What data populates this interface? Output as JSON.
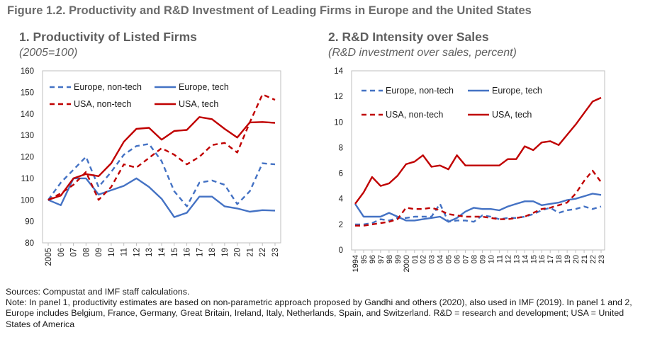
{
  "figure_title": "Figure 1.2. Productivity and R&D Investment of Leading Firms in Europe and the United States",
  "panel1": {
    "title": "1. Productivity of Listed Firms",
    "subtitle": "(2005=100)"
  },
  "panel2": {
    "title": "2. R&D Intensity over Sales",
    "subtitle": "(R&D investment over sales, percent)"
  },
  "notes": {
    "sources": "Sources: Compustat and IMF staff calculations.",
    "note": "Note: In panel 1, productivity estimates are based on non-parametric approach proposed by Gandhi and others (2020), also used in IMF (2019). In panel 1 and 2, Europe includes Belgium, France, Germany, Great Britain, Ireland, Italy, Netherlands, Spain, and Switzerland. R&D = research and development; USA = United States of America"
  },
  "colors": {
    "europe": "#4472C4",
    "usa": "#C00000",
    "title_gray": "#6b6b6b"
  },
  "chart_data": [
    {
      "type": "line",
      "title": "1. Productivity of Listed Firms",
      "subtitle": "(2005=100)",
      "x": [
        "2005",
        "06",
        "07",
        "08",
        "09",
        "10",
        "11",
        "12",
        "13",
        "14",
        "15",
        "16",
        "17",
        "18",
        "19",
        "20",
        "21",
        "22",
        "23"
      ],
      "ylim": [
        80,
        160
      ],
      "yticks": [
        80,
        90,
        100,
        110,
        120,
        130,
        140,
        150,
        160
      ],
      "grid": false,
      "legend_position": "top-left",
      "series": [
        {
          "name": "Europe, non-tech",
          "color": "#4472C4",
          "dash": true,
          "values": [
            100,
            108,
            114,
            120,
            106,
            113,
            121,
            125,
            126,
            118,
            104,
            97,
            108,
            109,
            107,
            98,
            104,
            117,
            116.5
          ]
        },
        {
          "name": "Europe, tech",
          "color": "#4472C4",
          "dash": false,
          "values": [
            100,
            97.5,
            110,
            110,
            102.5,
            104.5,
            106.5,
            110,
            106,
            100.5,
            92,
            94,
            101.5,
            101.5,
            97,
            96,
            94.5,
            95.2,
            95
          ]
        },
        {
          "name": "USA, non-tech",
          "color": "#C00000",
          "dash": true,
          "values": [
            100,
            103,
            107,
            113,
            100,
            106,
            116.5,
            115,
            119.5,
            124,
            121,
            116.5,
            120,
            125.5,
            126.5,
            122,
            136,
            149,
            146.5
          ]
        },
        {
          "name": "USA, tech",
          "color": "#C00000",
          "dash": false,
          "values": [
            100,
            102,
            110,
            112,
            111,
            117,
            127,
            133,
            133.5,
            128,
            132,
            132.5,
            138.5,
            137.5,
            133,
            129,
            136,
            136.2,
            135.8
          ]
        }
      ]
    },
    {
      "type": "line",
      "title": "2. R&D Intensity over Sales",
      "subtitle": "(R&D investment over sales, percent)",
      "x": [
        "1994",
        "95",
        "96",
        "97",
        "98",
        "99",
        "2000",
        "01",
        "02",
        "03",
        "04",
        "05",
        "06",
        "07",
        "08",
        "09",
        "10",
        "11",
        "12",
        "13",
        "14",
        "15",
        "16",
        "17",
        "18",
        "19",
        "20",
        "21",
        "22",
        "23"
      ],
      "ylim": [
        0,
        14
      ],
      "yticks": [
        0,
        2,
        4,
        6,
        8,
        10,
        12,
        14
      ],
      "grid": false,
      "legend_position": "top-left",
      "series": [
        {
          "name": "Europe, non-tech",
          "color": "#4472C4",
          "dash": true,
          "values": [
            2.0,
            2.0,
            2.1,
            2.4,
            2.3,
            2.5,
            2.5,
            2.6,
            2.6,
            2.6,
            3.6,
            2.2,
            2.3,
            2.3,
            2.2,
            2.7,
            2.6,
            2.4,
            2.5,
            2.5,
            2.6,
            2.8,
            3.1,
            3.3,
            2.9,
            3.1,
            3.2,
            3.4,
            3.2,
            3.4
          ]
        },
        {
          "name": "Europe, tech",
          "color": "#4472C4",
          "dash": false,
          "values": [
            3.6,
            2.6,
            2.6,
            2.6,
            2.9,
            2.6,
            2.3,
            2.3,
            2.4,
            2.5,
            2.6,
            2.2,
            2.5,
            3.0,
            3.3,
            3.2,
            3.2,
            3.1,
            3.4,
            3.6,
            3.8,
            3.8,
            3.5,
            3.6,
            3.7,
            3.9,
            4.0,
            4.2,
            4.4,
            4.3
          ]
        },
        {
          "name": "USA, non-tech",
          "color": "#C00000",
          "dash": true,
          "values": [
            1.9,
            1.9,
            2.0,
            2.1,
            2.2,
            2.4,
            3.3,
            3.2,
            3.2,
            3.3,
            3.1,
            2.8,
            2.7,
            2.6,
            2.6,
            2.6,
            2.5,
            2.4,
            2.4,
            2.5,
            2.6,
            2.9,
            3.2,
            3.3,
            3.5,
            3.7,
            4.4,
            5.4,
            6.2,
            5.3
          ]
        },
        {
          "name": "USA, tech",
          "color": "#C00000",
          "dash": false,
          "values": [
            3.6,
            4.5,
            5.7,
            5.0,
            5.2,
            5.8,
            6.7,
            6.9,
            7.4,
            6.5,
            6.6,
            6.3,
            7.4,
            6.6,
            6.6,
            6.6,
            6.6,
            6.6,
            7.1,
            7.1,
            8.1,
            7.8,
            8.4,
            8.5,
            8.2,
            9.0,
            9.8,
            10.7,
            11.6,
            11.9
          ]
        }
      ]
    }
  ]
}
